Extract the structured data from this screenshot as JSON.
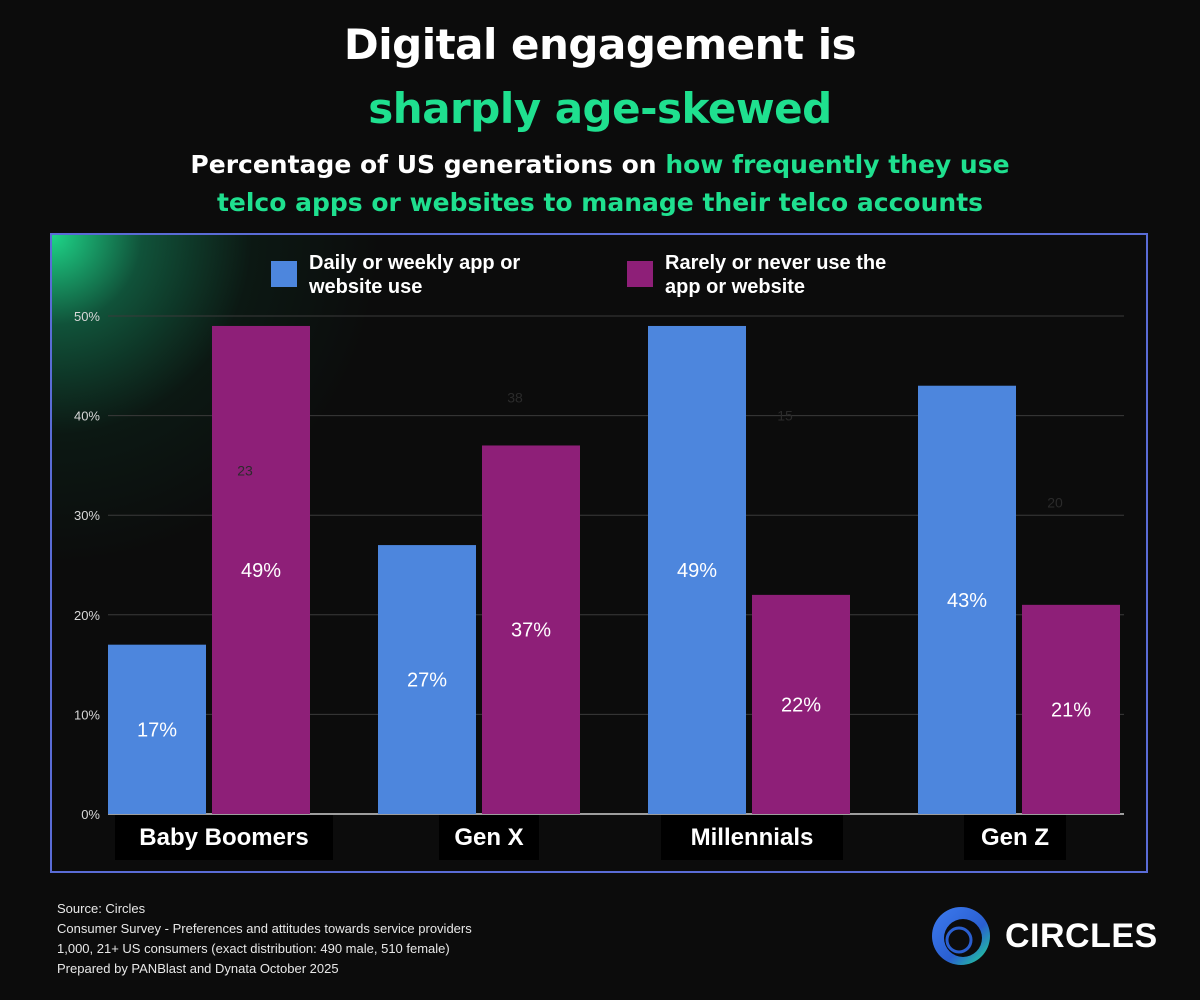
{
  "header": {
    "title_line1": "Digital engagement is",
    "title_line2": "sharply age-skewed",
    "subtitle_lead": "Percentage of US generations on ",
    "subtitle_highlight_a": "how frequently they use",
    "subtitle_highlight_b": "telco apps or websites to manage their telco accounts"
  },
  "colors": {
    "accent_green": "#1fe08f",
    "daily_series": "#4d86dd",
    "rarely_series": "#8e1f78"
  },
  "chart_data": {
    "type": "bar",
    "title": "",
    "xlabel": "",
    "ylabel": "",
    "ylim": [
      0,
      50
    ],
    "yticks": [
      0,
      10,
      20,
      30,
      40,
      50
    ],
    "ytick_labels": [
      "0%",
      "10%",
      "20%",
      "30%",
      "40%",
      "50%"
    ],
    "categories": [
      "Baby Boomers",
      "Gen X",
      "Millennials",
      "Gen Z"
    ],
    "series": [
      {
        "name": "Daily or weekly app or website use",
        "values": [
          17,
          27,
          49,
          43
        ],
        "labels": [
          "17%",
          "27%",
          "49%",
          "43%"
        ],
        "color": "#4d86dd"
      },
      {
        "name": "Rarely or never use the app or website",
        "values": [
          49,
          37,
          22,
          21
        ],
        "labels": [
          "49%",
          "37%",
          "22%",
          "21%"
        ],
        "color": "#8e1f78"
      }
    ],
    "annotations": [
      {
        "text": "23",
        "x": 0.5,
        "y": 34.5
      },
      {
        "text": "38",
        "x": 1.5,
        "y": 41.8
      },
      {
        "text": "15",
        "x": 2.5,
        "y": 40.0
      },
      {
        "text": "20",
        "x": 3.5,
        "y": 31.3
      }
    ],
    "legend": {
      "position": "top-center",
      "labels": [
        {
          "line1": "Daily or weekly app or",
          "line2": "website use"
        },
        {
          "line1": "Rarely or never use the",
          "line2": "app or website"
        }
      ]
    },
    "grid": true
  },
  "footer": {
    "source": "Source: Circles",
    "survey": "Consumer Survey - Preferences and attitudes towards service providers",
    "sample": "1,000, 21+ US consumers (exact distribution: 490 male, 510 female)",
    "prepared": "Prepared by PANBlast and Dynata October 2025"
  },
  "brand": {
    "name": "CIRCLES",
    "logo_icon": "circles-logo-icon"
  }
}
